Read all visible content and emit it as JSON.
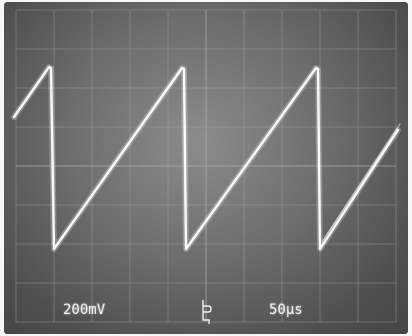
{
  "display": {
    "volts_per_div": "200mV",
    "time_per_div": "50μs"
  },
  "colors": {
    "screen": "#6f6f6f",
    "grid": "#a8a8a8",
    "trace": "#ffffff"
  }
}
